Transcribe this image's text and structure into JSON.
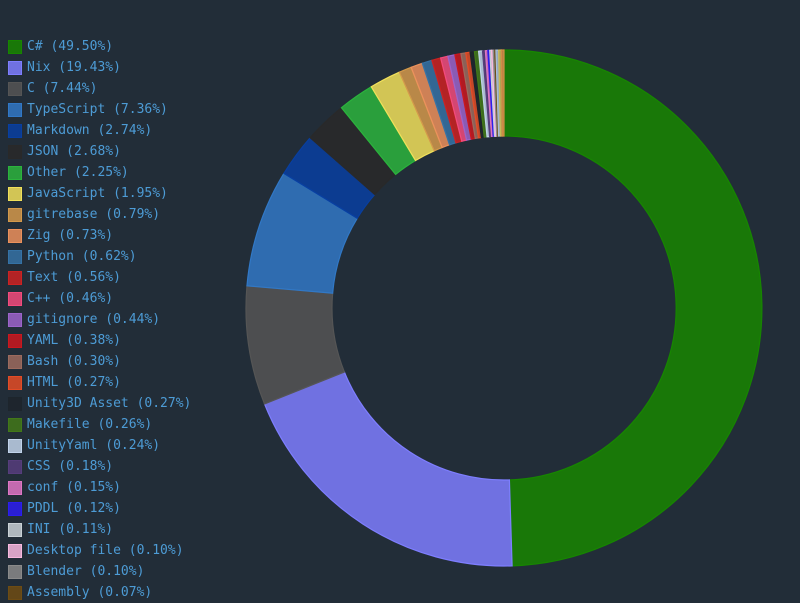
{
  "theme": {
    "background": "#222d38",
    "legend_text_color": "#4d9cd6",
    "slice_fill_opacity": 0.85
  },
  "chart_data": {
    "type": "pie",
    "subtype": "donut",
    "title": "",
    "legend_position": "left",
    "start_angle": "12-oclock-clockwise",
    "items": [
      {
        "label": "C#",
        "pct": "49.50",
        "color": "#178600"
      },
      {
        "label": "Nix",
        "pct": "19.43",
        "color": "#7e7eff"
      },
      {
        "label": "C",
        "pct": "7.44",
        "color": "#555555"
      },
      {
        "label": "TypeScript",
        "pct": "7.36",
        "color": "#3178c6"
      },
      {
        "label": "Markdown",
        "pct": "2.74",
        "color": "#083fa1"
      },
      {
        "label": "JSON",
        "pct": "2.68",
        "color": "#292929"
      },
      {
        "label": "Other",
        "pct": "2.25",
        "color": "#2bb43d"
      },
      {
        "label": "JavaScript",
        "pct": "1.95",
        "color": "#f1e05a"
      },
      {
        "label": "gitrebase",
        "pct": "0.79",
        "color": "#d3994b"
      },
      {
        "label": "Zig",
        "pct": "0.73",
        "color": "#ec915c"
      },
      {
        "label": "Python",
        "pct": "0.62",
        "color": "#3572a5"
      },
      {
        "label": "Text",
        "pct": "0.56",
        "color": "#cc2222"
      },
      {
        "label": "C++",
        "pct": "0.46",
        "color": "#f34b7d"
      },
      {
        "label": "gitignore",
        "pct": "0.44",
        "color": "#9c64ca"
      },
      {
        "label": "YAML",
        "pct": "0.38",
        "color": "#cb171e"
      },
      {
        "label": "Bash",
        "pct": "0.30",
        "color": "#9c6b5e"
      },
      {
        "label": "HTML",
        "pct": "0.27",
        "color": "#e34c26"
      },
      {
        "label": "Unity3D Asset",
        "pct": "0.27",
        "color": "#1d252c"
      },
      {
        "label": "Makefile",
        "pct": "0.26",
        "color": "#427819"
      },
      {
        "label": "UnityYaml",
        "pct": "0.24",
        "color": "#c1d3ea"
      },
      {
        "label": "CSS",
        "pct": "0.18",
        "color": "#563d7c"
      },
      {
        "label": "conf",
        "pct": "0.15",
        "color": "#df76c5"
      },
      {
        "label": "PDDL",
        "pct": "0.12",
        "color": "#2b1df0"
      },
      {
        "label": "INI",
        "pct": "0.11",
        "color": "#c9d1d6"
      },
      {
        "label": "Desktop file",
        "pct": "0.10",
        "color": "#f8b9df"
      },
      {
        "label": "Blender",
        "pct": "0.10",
        "color": "#8a8a8a"
      },
      {
        "label": "Assembly",
        "pct": "0.07",
        "color": "#6e4c13"
      }
    ],
    "unlisted_slivers": [
      {
        "pct": "0.17",
        "color": "#a9c0d8"
      },
      {
        "pct": "0.17",
        "color": "#c9b958"
      },
      {
        "pct": "0.16",
        "color": "#d28d46"
      }
    ]
  }
}
